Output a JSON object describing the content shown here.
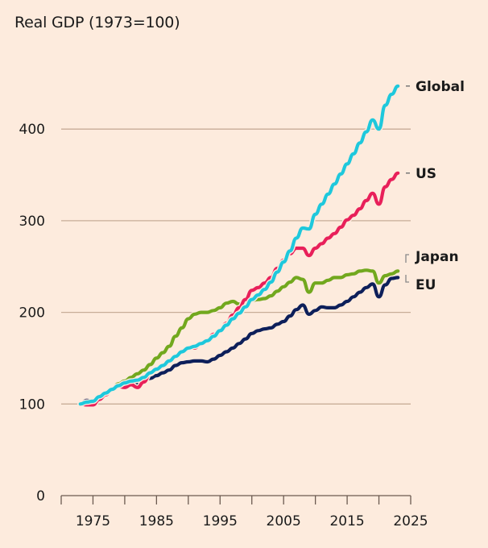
{
  "chart_data": {
    "type": "line",
    "title": "Real GDP (1973=100)",
    "xlabel": "",
    "ylabel": "",
    "xlim": [
      1970,
      2025
    ],
    "ylim": [
      0,
      450
    ],
    "x_ticks": [
      1970,
      1975,
      1980,
      1985,
      1990,
      1995,
      2000,
      2005,
      2010,
      2015,
      2020,
      2025
    ],
    "x_tick_labels": [
      "1975",
      "1985",
      "1995",
      "2005",
      "2015",
      "2025"
    ],
    "x_tick_label_years": [
      1975,
      1985,
      1995,
      2005,
      2015,
      2025
    ],
    "y_ticks": [
      0,
      100,
      200,
      300,
      400
    ],
    "y_tick_labels": [
      "0",
      "100",
      "200",
      "300",
      "400"
    ],
    "grid": "horizontal",
    "legend": "direct-labels-right",
    "x": [
      1973,
      1974,
      1975,
      1976,
      1977,
      1978,
      1979,
      1980,
      1981,
      1982,
      1983,
      1984,
      1985,
      1986,
      1987,
      1988,
      1989,
      1990,
      1991,
      1992,
      1993,
      1994,
      1995,
      1996,
      1997,
      1998,
      1999,
      2000,
      2001,
      2002,
      2003,
      2004,
      2005,
      2006,
      2007,
      2008,
      2009,
      2010,
      2011,
      2012,
      2013,
      2014,
      2015,
      2016,
      2017,
      2018,
      2019,
      2020,
      2021,
      2022,
      2023
    ],
    "series": [
      {
        "name": "Global",
        "color": "#1ec8dc",
        "values": [
          100,
          102,
          103,
          108,
          112,
          116,
          120,
          123,
          125,
          126,
          129,
          134,
          138,
          142,
          147,
          152,
          157,
          161,
          163,
          166,
          169,
          174,
          180,
          186,
          193,
          199,
          206,
          214,
          219,
          225,
          233,
          244,
          255,
          267,
          281,
          292,
          291,
          307,
          318,
          329,
          340,
          351,
          362,
          373,
          385,
          397,
          410,
          400,
          426,
          438,
          447
        ]
      },
      {
        "name": "US",
        "color": "#e8205a",
        "values": [
          100,
          99,
          99,
          105,
          110,
          116,
          119,
          118,
          121,
          118,
          124,
          133,
          138,
          142,
          147,
          153,
          158,
          161,
          161,
          166,
          170,
          176,
          181,
          188,
          197,
          205,
          214,
          224,
          227,
          232,
          238,
          248,
          257,
          264,
          270,
          270,
          262,
          270,
          275,
          281,
          286,
          293,
          301,
          306,
          313,
          322,
          330,
          318,
          337,
          345,
          352
        ]
      },
      {
        "name": "Japan",
        "color": "#72a81e",
        "values": [
          100,
          99,
          102,
          106,
          111,
          116,
          122,
          125,
          129,
          133,
          137,
          143,
          150,
          156,
          163,
          174,
          183,
          193,
          198,
          200,
          200,
          202,
          205,
          210,
          212,
          209,
          209,
          213,
          214,
          215,
          218,
          223,
          228,
          233,
          238,
          236,
          222,
          232,
          232,
          235,
          238,
          238,
          241,
          242,
          245,
          246,
          245,
          232,
          240,
          242,
          245
        ]
      },
      {
        "name": "EU",
        "color": "#0d1f5a",
        "values": [
          100,
          104,
          103,
          108,
          112,
          115,
          119,
          121,
          122,
          123,
          125,
          128,
          131,
          134,
          137,
          142,
          145,
          146,
          147,
          147,
          146,
          149,
          153,
          157,
          161,
          166,
          171,
          177,
          180,
          182,
          183,
          187,
          190,
          196,
          203,
          208,
          198,
          202,
          206,
          205,
          205,
          208,
          212,
          217,
          222,
          227,
          231,
          217,
          230,
          237,
          238
        ]
      }
    ],
    "labels": [
      {
        "text": "Global",
        "series": "Global",
        "connector": "dash"
      },
      {
        "text": "US",
        "series": "US",
        "connector": "dash"
      },
      {
        "text": "Japan",
        "series": "Japan",
        "connector": "bracket-down"
      },
      {
        "text": "EU",
        "series": "EU",
        "connector": "bracket-up"
      }
    ]
  }
}
